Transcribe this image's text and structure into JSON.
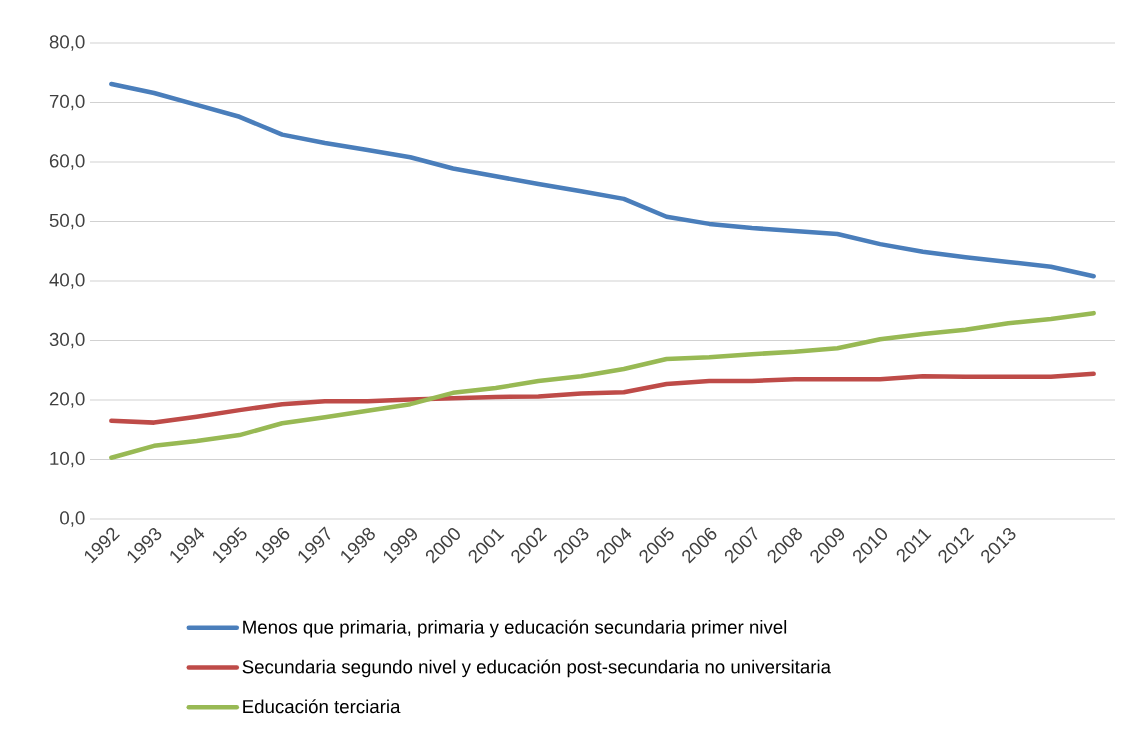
{
  "chart_data": {
    "type": "line",
    "categories": [
      "1992",
      "1993",
      "1994",
      "1995",
      "1996",
      "1997",
      "1998",
      "1999",
      "2000",
      "2001",
      "2002",
      "2003",
      "2004",
      "2005",
      "2006",
      "2007",
      "2008",
      "2009",
      "2010",
      "2011",
      "2012",
      "2013",
      null,
      null
    ],
    "series": [
      {
        "name": "Menos que primaria, primaria y educación secundaria primer nivel",
        "color": "#4a7ebb",
        "values": [
          73.1,
          71.6,
          69.6,
          67.6,
          64.6,
          63.2,
          62.0,
          60.8,
          58.9,
          57.6,
          56.3,
          55.1,
          53.8,
          50.8,
          49.6,
          48.9,
          48.4,
          47.9,
          46.2,
          44.9,
          44.0,
          43.2,
          42.4,
          40.8
        ]
      },
      {
        "name": "Secundaria segundo nivel y educación post-secundaria no universitaria",
        "color": "#be4b48",
        "values": [
          16.5,
          16.2,
          17.2,
          18.3,
          19.3,
          19.8,
          19.8,
          20.1,
          20.3,
          20.5,
          20.6,
          21.1,
          21.3,
          22.7,
          23.2,
          23.2,
          23.5,
          23.5,
          23.5,
          24.0,
          23.9,
          23.9,
          23.9,
          24.4
        ]
      },
      {
        "name": "Educación terciaria",
        "color": "#98b954",
        "values": [
          10.3,
          12.3,
          13.1,
          14.1,
          16.1,
          17.1,
          18.2,
          19.3,
          21.2,
          22.0,
          23.2,
          24.0,
          25.2,
          26.9,
          27.2,
          27.7,
          28.1,
          28.7,
          30.2,
          31.1,
          31.8,
          32.9,
          33.6,
          34.6
        ]
      }
    ],
    "ylim": [
      0,
      80
    ],
    "yticks": [
      {
        "value": 0,
        "label": "0,0"
      },
      {
        "value": 10,
        "label": "10,0"
      },
      {
        "value": 20,
        "label": "20,0"
      },
      {
        "value": 30,
        "label": "30,0"
      },
      {
        "value": 40,
        "label": "40,0"
      },
      {
        "value": 50,
        "label": "50,0"
      },
      {
        "value": 60,
        "label": "60,0"
      },
      {
        "value": 70,
        "label": "70,0"
      },
      {
        "value": 80,
        "label": "80,0"
      }
    ],
    "grid": "y",
    "legend": "bottom",
    "marker": "none",
    "line_style": "solid"
  }
}
